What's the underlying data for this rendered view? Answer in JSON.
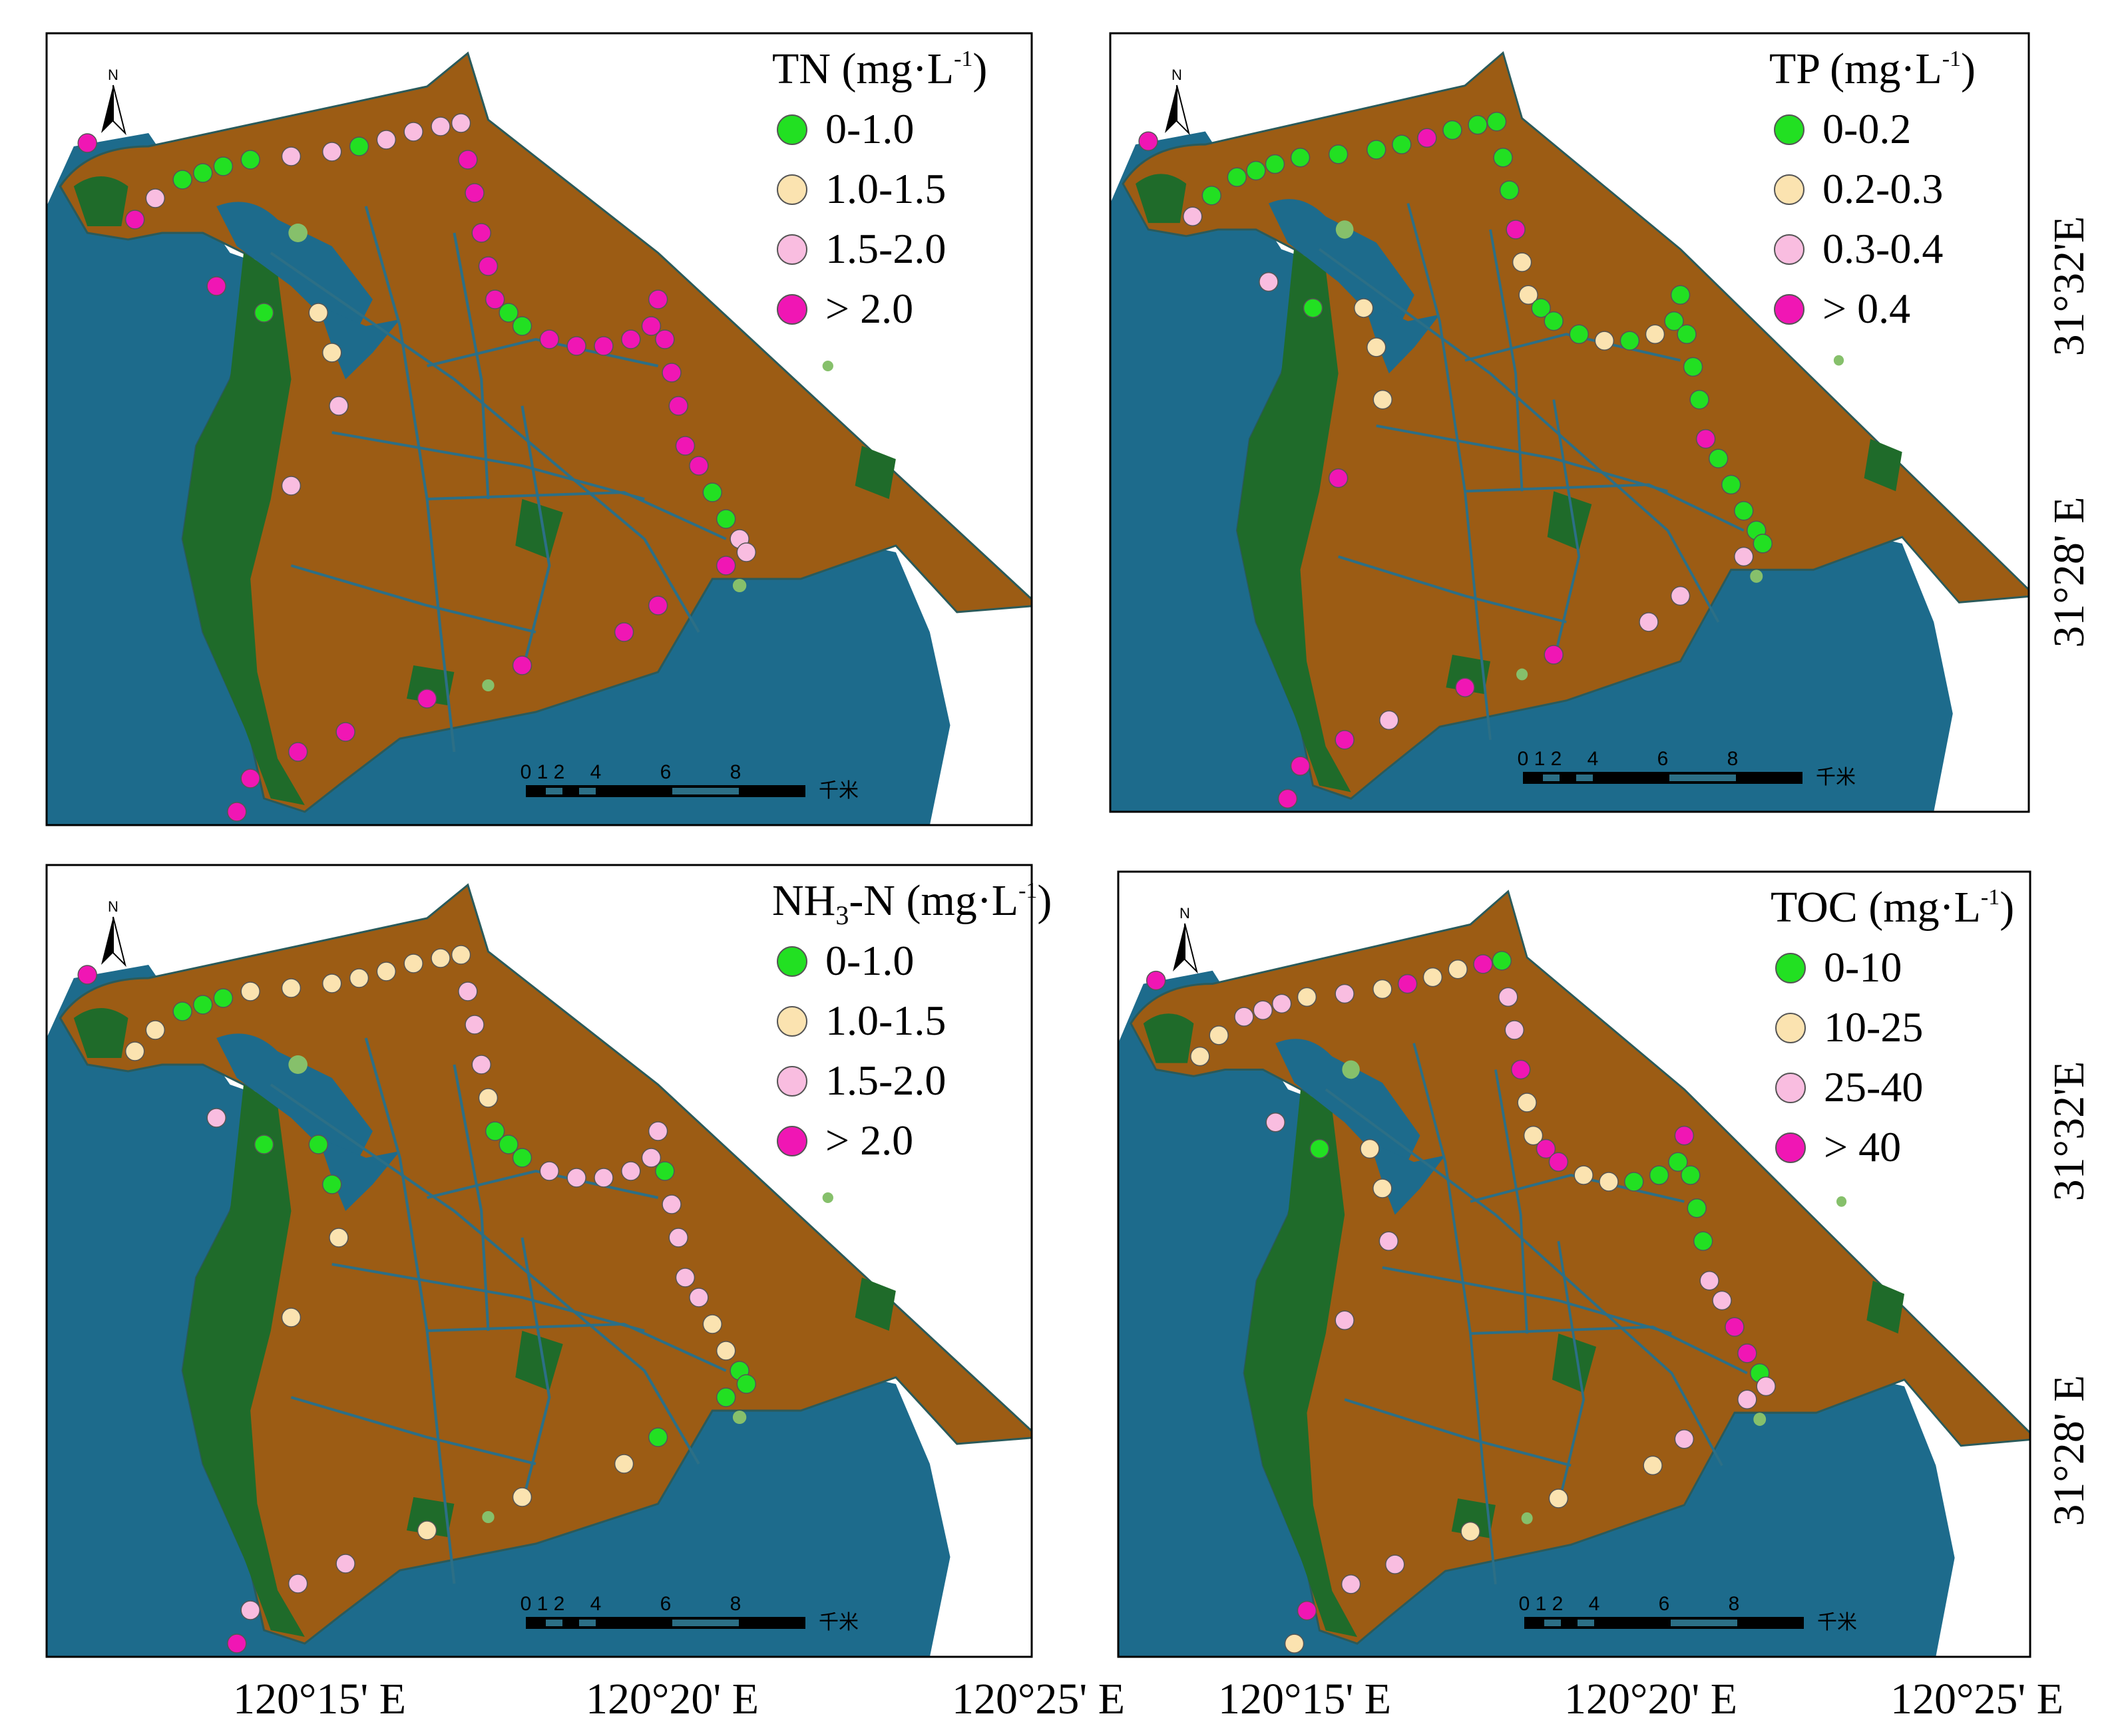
{
  "colors": {
    "lake": "#1d6b8c",
    "urban": "#9c5c14",
    "forest": "#1f6b2a",
    "farmland": "#86c06b",
    "river": "#2c6f86",
    "outline": "#000000"
  },
  "panels": [
    {
      "id": "tn",
      "legend": {
        "title": "TN (mg·L",
        "title_sup": "-1",
        "title_close": ")",
        "classes": [
          {
            "label": "0-1.0",
            "color": "#22e022"
          },
          {
            "label": "1.0-1.5",
            "color": "#fbe3b0"
          },
          {
            "label": "1.5-2.0",
            "color": "#f9bde0"
          },
          {
            "label": "> 2.0",
            "color": "#f016b4"
          }
        ]
      },
      "north_label": "N",
      "scale": {
        "ticks": [
          "0",
          "1",
          "2",
          "4",
          "6",
          "8"
        ],
        "unit": "千米"
      }
    },
    {
      "id": "tp",
      "legend": {
        "title": "TP (mg·L",
        "title_sup": "-1",
        "title_close": ")",
        "classes": [
          {
            "label": "0-0.2",
            "color": "#22e022"
          },
          {
            "label": "0.2-0.3",
            "color": "#fbe3b0"
          },
          {
            "label": "0.3-0.4",
            "color": "#f9bde0"
          },
          {
            "label": "> 0.4",
            "color": "#f016b4"
          }
        ]
      },
      "north_label": "N",
      "scale": {
        "ticks": [
          "0",
          "1",
          "2",
          "4",
          "6",
          "8"
        ],
        "unit": "千米"
      }
    },
    {
      "id": "nh3n",
      "legend": {
        "title_pre": "NH",
        "title_sub": "3",
        "title": "-N (mg·L",
        "title_sup": "-1",
        "title_close": ")",
        "classes": [
          {
            "label": "0-1.0",
            "color": "#22e022"
          },
          {
            "label": "1.0-1.5",
            "color": "#fbe3b0"
          },
          {
            "label": "1.5-2.0",
            "color": "#f9bde0"
          },
          {
            "label": "> 2.0",
            "color": "#f016b4"
          }
        ]
      },
      "north_label": "N",
      "scale": {
        "ticks": [
          "0",
          "1",
          "2",
          "4",
          "6",
          "8"
        ],
        "unit": "千米"
      }
    },
    {
      "id": "toc",
      "legend": {
        "title": "TOC (mg·L",
        "title_sup": "-1",
        "title_close": ")",
        "classes": [
          {
            "label": "0-10",
            "color": "#22e022"
          },
          {
            "label": "10-25",
            "color": "#fbe3b0"
          },
          {
            "label": "25-40",
            "color": "#f9bde0"
          },
          {
            "label": "> 40",
            "color": "#f016b4"
          }
        ]
      },
      "north_label": "N",
      "scale": {
        "ticks": [
          "0",
          "1",
          "2",
          "4",
          "6",
          "8"
        ],
        "unit": "千米"
      }
    }
  ],
  "axes": {
    "lon_labels": [
      "120°15' E",
      "120°20' E",
      "120°25' E"
    ],
    "lat_labels": [
      "31°32'E",
      "31°28' E"
    ]
  }
}
